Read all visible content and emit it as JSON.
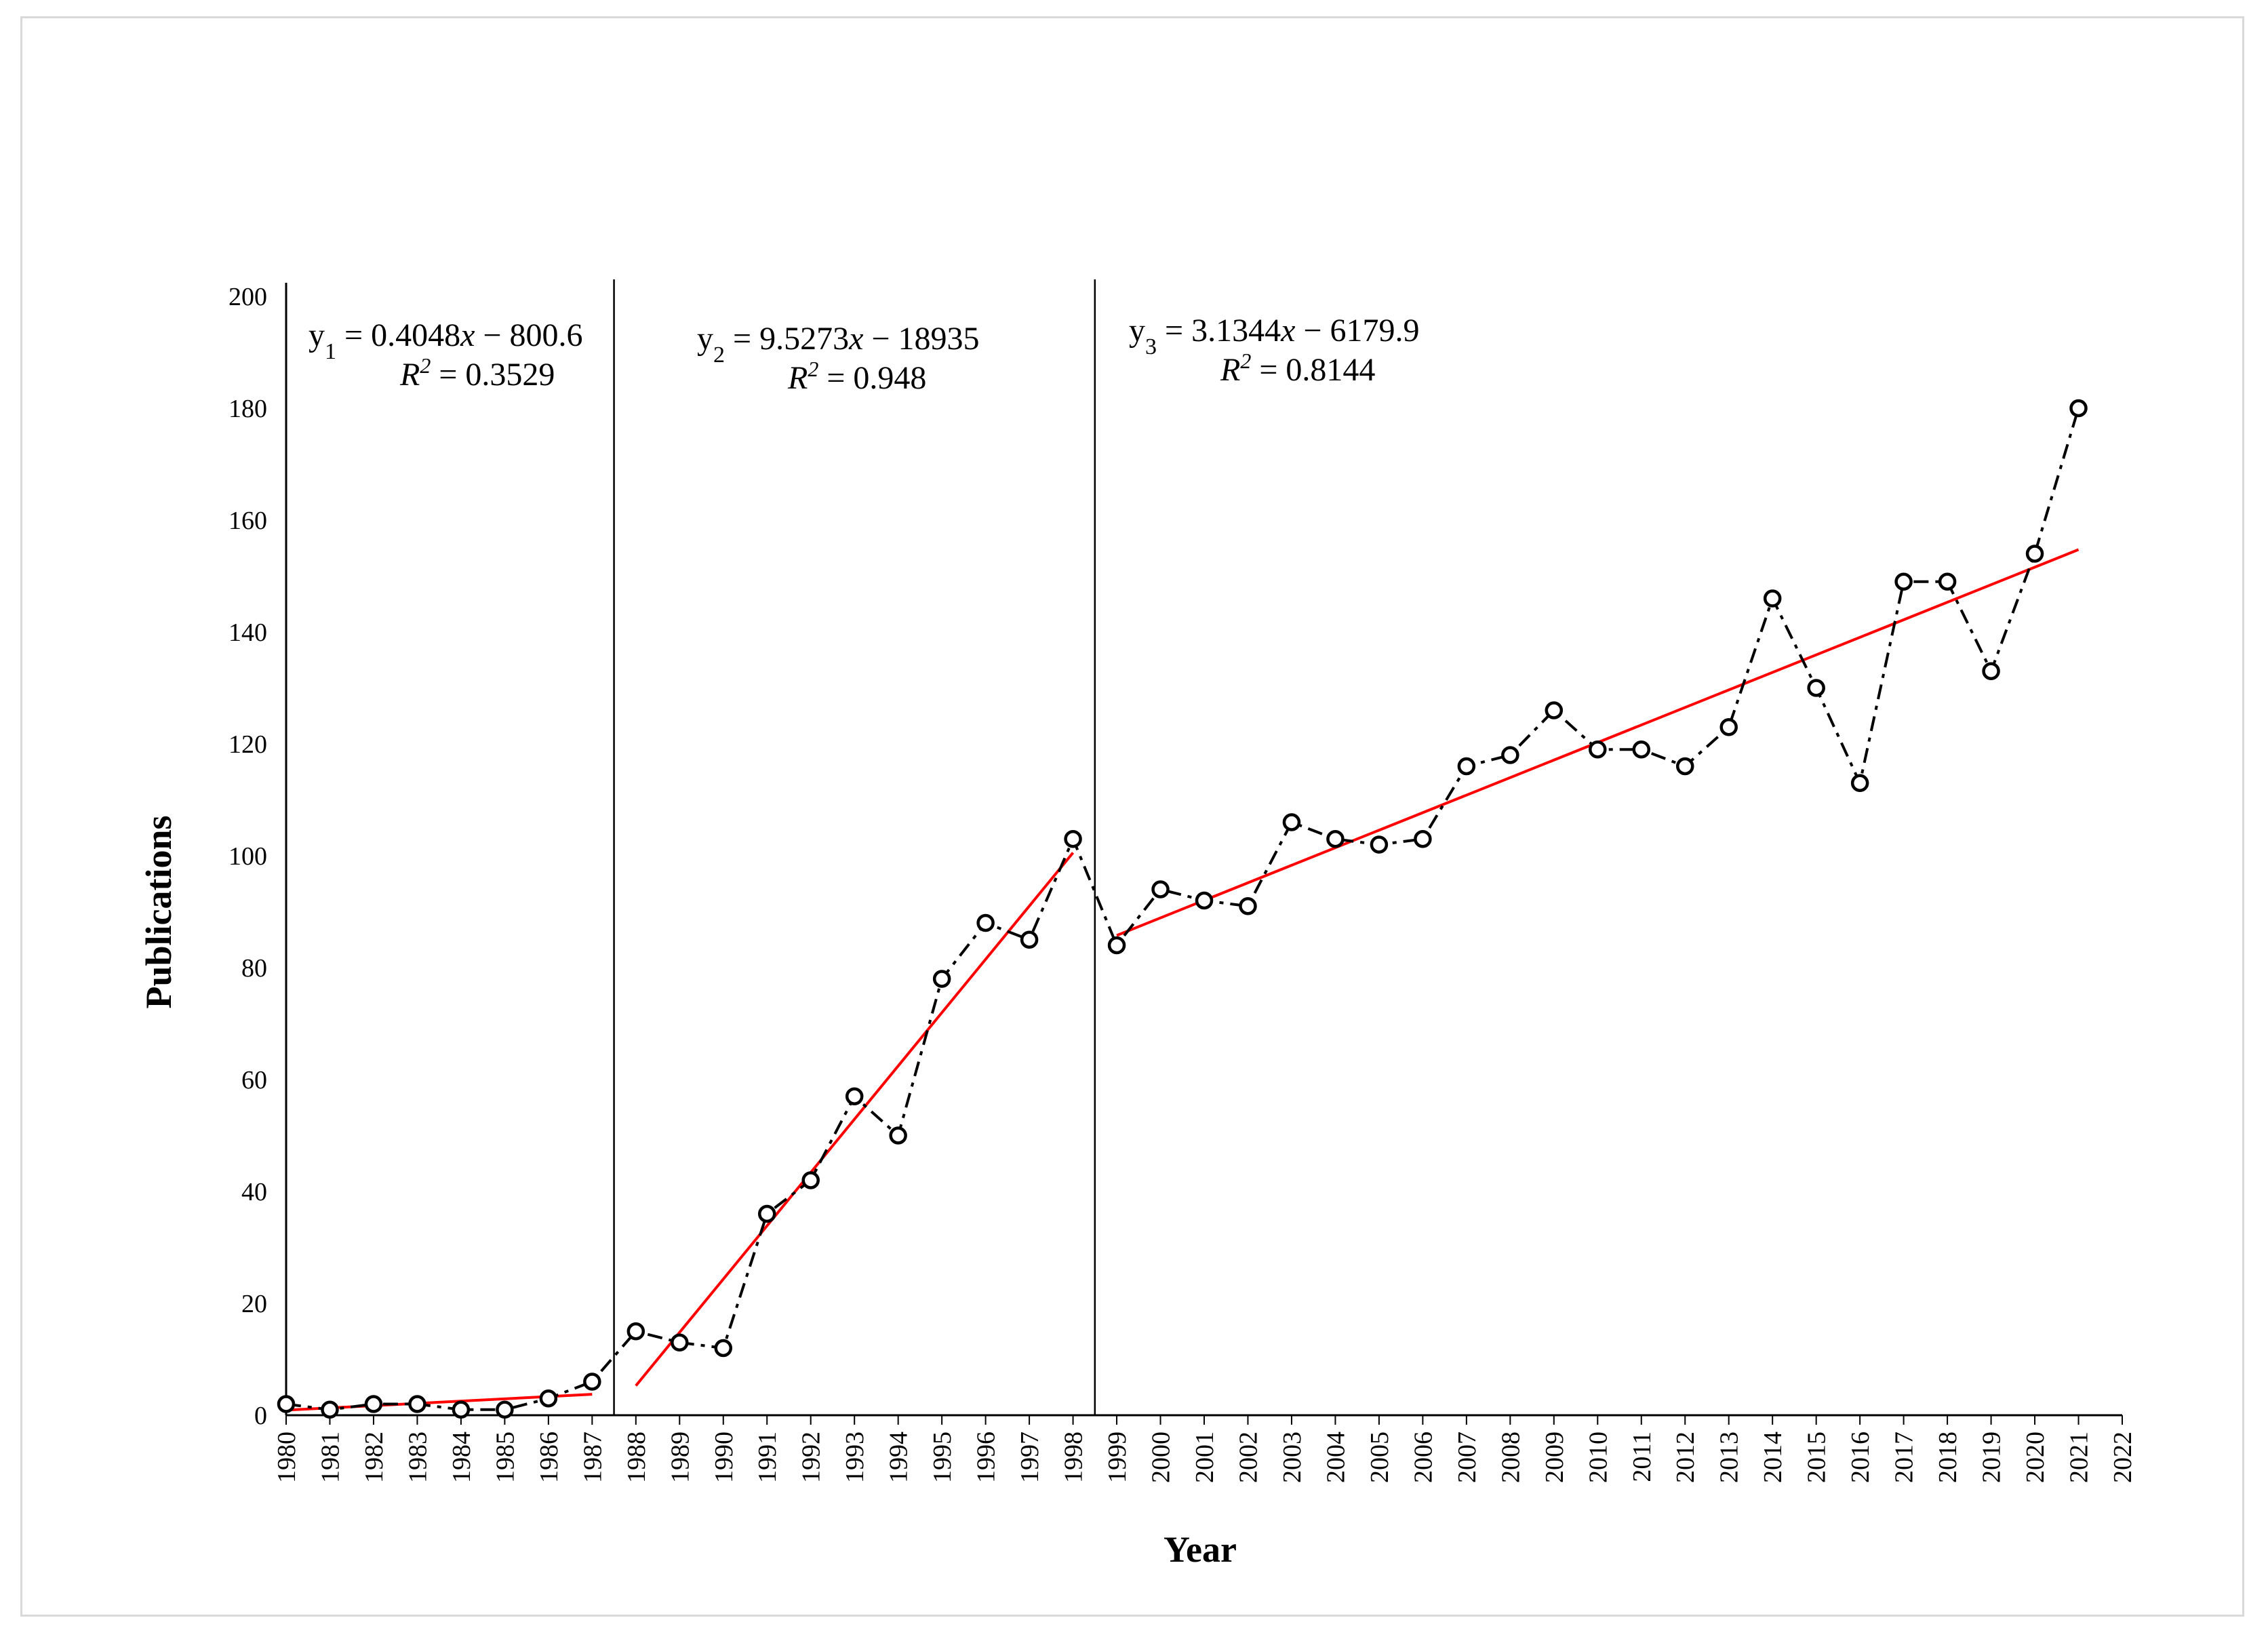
{
  "chart_data": {
    "type": "line",
    "title": "",
    "xlabel": "Year",
    "ylabel": "Publications",
    "xlim": [
      1980,
      2022
    ],
    "ylim": [
      0,
      200
    ],
    "yticks": [
      0,
      20,
      40,
      60,
      80,
      100,
      120,
      140,
      160,
      180,
      200
    ],
    "xticks": [
      1980,
      1981,
      1982,
      1983,
      1984,
      1985,
      1986,
      1987,
      1988,
      1989,
      1990,
      1991,
      1992,
      1993,
      1994,
      1995,
      1996,
      1997,
      1998,
      1999,
      2000,
      2001,
      2002,
      2003,
      2004,
      2005,
      2006,
      2007,
      2008,
      2009,
      2010,
      2011,
      2012,
      2013,
      2014,
      2015,
      2016,
      2017,
      2018,
      2019,
      2020,
      2021,
      2022
    ],
    "series": [
      {
        "name": "Publications",
        "style": "dashed-black-with-open-circles",
        "color": "#000000",
        "x": [
          1980,
          1981,
          1982,
          1983,
          1984,
          1985,
          1986,
          1987,
          1988,
          1989,
          1990,
          1991,
          1992,
          1993,
          1994,
          1995,
          1996,
          1997,
          1998,
          1999,
          2000,
          2001,
          2002,
          2003,
          2004,
          2005,
          2006,
          2007,
          2008,
          2009,
          2010,
          2011,
          2012,
          2013,
          2014,
          2015,
          2016,
          2017,
          2018,
          2019,
          2020,
          2021
        ],
        "values": [
          2,
          1,
          2,
          2,
          1,
          1,
          3,
          6,
          15,
          13,
          12,
          36,
          42,
          57,
          50,
          78,
          88,
          85,
          103,
          84,
          94,
          92,
          91,
          106,
          103,
          102,
          103,
          116,
          118,
          126,
          119,
          119,
          116,
          123,
          146,
          130,
          113,
          149,
          149,
          133,
          154,
          180
        ]
      }
    ],
    "trendlines": [
      {
        "name": "y1",
        "color": "#ff0000",
        "slope": 0.4048,
        "intercept": -800.6,
        "x_range": [
          1980,
          1987
        ],
        "label_line1_prefix": "y",
        "label_line1_sub": "1",
        "label_line1_a": " = 0.4048",
        "label_line1_x": "x",
        "label_line1_b": " − 800.6",
        "label_r2_var": "R",
        "label_r2_sup": "2",
        "label_r2_value": " = 0.3529"
      },
      {
        "name": "y2",
        "color": "#ff0000",
        "slope": 9.5273,
        "intercept": -18935,
        "x_range": [
          1988,
          1998
        ],
        "label_line1_prefix": "y",
        "label_line1_sub": "2",
        "label_line1_a": " = 9.5273",
        "label_line1_x": "x",
        "label_line1_b": " − 18935",
        "label_r2_var": "R",
        "label_r2_sup": "2",
        "label_r2_value": " = 0.948"
      },
      {
        "name": "y3",
        "color": "#ff0000",
        "slope": 3.1344,
        "intercept": -6179.9,
        "x_range": [
          1999,
          2021
        ],
        "label_line1_prefix": "y",
        "label_line1_sub": "3",
        "label_line1_a": " = 3.1344",
        "label_line1_x": "x",
        "label_line1_b": " − 6179.9",
        "label_r2_var": "R",
        "label_r2_sup": "2",
        "label_r2_value": " = 0.8144"
      }
    ],
    "phase_dividers_x": [
      1987.5,
      1998.5
    ],
    "grid": false,
    "legend": "none"
  }
}
